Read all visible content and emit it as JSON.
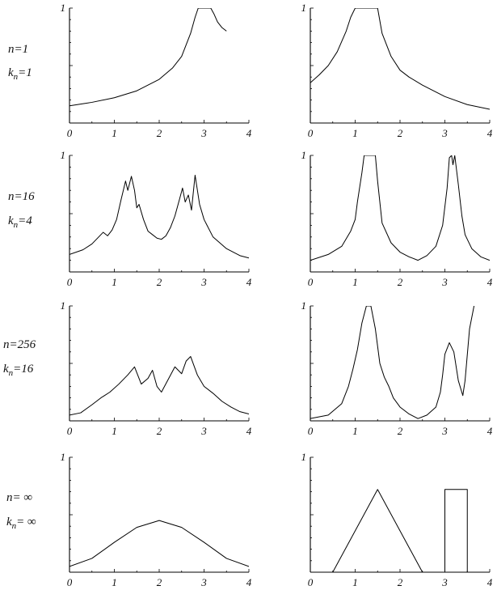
{
  "rows": [
    {
      "n_label": "n=1",
      "k_label": "kn=1"
    },
    {
      "n_label": "n=16",
      "k_label": "kn=4"
    },
    {
      "n_label": "n=256",
      "k_label": "kn=16"
    },
    {
      "n_label": "n= ∞",
      "k_label": "kn= ∞"
    }
  ],
  "chart_data": [
    {
      "type": "line",
      "row": 0,
      "column": "left",
      "xlim": [
        0,
        4
      ],
      "ylim": [
        0,
        1
      ],
      "x_ticks": [
        "0",
        "1",
        "2",
        "3",
        "4"
      ],
      "y_tick": "1",
      "series": [
        {
          "x": [
            0,
            0.5,
            1,
            1.5,
            2,
            2.3,
            2.5,
            2.7,
            2.8,
            2.87,
            3.15,
            3.22,
            3.3,
            3.4,
            3.5
          ],
          "y": [
            0.15,
            0.18,
            0.22,
            0.28,
            0.38,
            0.48,
            0.58,
            0.78,
            0.92,
            1.0,
            1.0,
            0.95,
            0.88,
            0.83,
            0.8
          ]
        }
      ]
    },
    {
      "type": "line",
      "row": 0,
      "column": "right",
      "xlim": [
        0,
        4
      ],
      "ylim": [
        0,
        1
      ],
      "x_ticks": [
        "0",
        "1",
        "2",
        "3",
        "4"
      ],
      "y_tick": "1",
      "series": [
        {
          "x": [
            0,
            0.2,
            0.4,
            0.6,
            0.8,
            0.9,
            1.0,
            1.5,
            1.6,
            1.8,
            2.0,
            2.2,
            2.5,
            3.0,
            3.5,
            4.0
          ],
          "y": [
            0.35,
            0.42,
            0.5,
            0.62,
            0.8,
            0.92,
            1.0,
            1.0,
            0.78,
            0.58,
            0.46,
            0.4,
            0.33,
            0.23,
            0.16,
            0.12
          ]
        }
      ]
    },
    {
      "type": "line",
      "row": 1,
      "column": "left",
      "xlim": [
        0,
        4
      ],
      "ylim": [
        0,
        1
      ],
      "x_ticks": [
        "0",
        "1",
        "2",
        "3",
        "4"
      ],
      "y_tick": "1",
      "series": [
        {
          "x": [
            0,
            0.3,
            0.5,
            0.65,
            0.75,
            0.85,
            0.95,
            1.05,
            1.15,
            1.25,
            1.3,
            1.38,
            1.45,
            1.5,
            1.55,
            1.65,
            1.75,
            1.85,
            1.95,
            2.05,
            2.15,
            2.25,
            2.35,
            2.45,
            2.52,
            2.58,
            2.65,
            2.72,
            2.8,
            2.9,
            3.0,
            3.2,
            3.5,
            3.8,
            4.0
          ],
          "y": [
            0.15,
            0.19,
            0.24,
            0.3,
            0.34,
            0.31,
            0.36,
            0.45,
            0.62,
            0.78,
            0.7,
            0.82,
            0.7,
            0.55,
            0.58,
            0.45,
            0.35,
            0.32,
            0.29,
            0.28,
            0.31,
            0.38,
            0.48,
            0.62,
            0.72,
            0.6,
            0.66,
            0.53,
            0.83,
            0.58,
            0.45,
            0.3,
            0.2,
            0.14,
            0.12
          ]
        }
      ]
    },
    {
      "type": "line",
      "row": 1,
      "column": "right",
      "xlim": [
        0,
        4
      ],
      "ylim": [
        0,
        1
      ],
      "x_ticks": [
        "0",
        "1",
        "2",
        "3",
        "4"
      ],
      "y_tick": "1",
      "series": [
        {
          "x": [
            0,
            0.4,
            0.7,
            0.9,
            1.0,
            1.05,
            1.15,
            1.2,
            1.45,
            1.5,
            1.6,
            1.8,
            2.0,
            2.2,
            2.4,
            2.6,
            2.8,
            2.95,
            3.05,
            3.1,
            3.15,
            3.18,
            3.22,
            3.3,
            3.38,
            3.45,
            3.6,
            3.8,
            4.0
          ],
          "y": [
            0.1,
            0.15,
            0.22,
            0.35,
            0.45,
            0.6,
            0.85,
            1.0,
            1.0,
            0.78,
            0.42,
            0.25,
            0.17,
            0.13,
            0.1,
            0.14,
            0.22,
            0.4,
            0.72,
            0.98,
            1.0,
            0.92,
            1.0,
            0.75,
            0.48,
            0.32,
            0.2,
            0.13,
            0.1
          ]
        }
      ]
    },
    {
      "type": "line",
      "row": 2,
      "column": "left",
      "xlim": [
        0,
        4
      ],
      "ylim": [
        0,
        1
      ],
      "x_ticks": [
        "0",
        "1",
        "2",
        "3",
        "4"
      ],
      "y_tick": "1",
      "series": [
        {
          "x": [
            0,
            0.25,
            0.5,
            0.7,
            0.9,
            1.1,
            1.3,
            1.45,
            1.6,
            1.75,
            1.85,
            1.95,
            2.05,
            2.2,
            2.35,
            2.5,
            2.6,
            2.7,
            2.85,
            3.0,
            3.2,
            3.4,
            3.6,
            3.8,
            4.0
          ],
          "y": [
            0.05,
            0.07,
            0.14,
            0.2,
            0.25,
            0.32,
            0.4,
            0.47,
            0.32,
            0.37,
            0.44,
            0.3,
            0.25,
            0.36,
            0.47,
            0.41,
            0.52,
            0.56,
            0.4,
            0.3,
            0.24,
            0.17,
            0.12,
            0.08,
            0.06
          ]
        }
      ]
    },
    {
      "type": "line",
      "row": 2,
      "column": "right",
      "xlim": [
        0,
        4
      ],
      "ylim": [
        0,
        1
      ],
      "x_ticks": [
        "0",
        "1",
        "2",
        "3",
        "4"
      ],
      "y_tick": "1",
      "series": [
        {
          "x": [
            0,
            0.4,
            0.7,
            0.85,
            0.95,
            1.05,
            1.15,
            1.25,
            1.35,
            1.45,
            1.55,
            1.65,
            1.75,
            1.85,
            2.0,
            2.2,
            2.4,
            2.6,
            2.8,
            2.9,
            2.95,
            3.0,
            3.1,
            3.2,
            3.3,
            3.4,
            3.45,
            3.55,
            3.65
          ],
          "y": [
            0.02,
            0.05,
            0.15,
            0.3,
            0.45,
            0.62,
            0.85,
            1.0,
            1.0,
            0.8,
            0.5,
            0.38,
            0.3,
            0.2,
            0.12,
            0.06,
            0.02,
            0.05,
            0.12,
            0.25,
            0.4,
            0.58,
            0.68,
            0.6,
            0.35,
            0.22,
            0.35,
            0.8,
            1.0
          ]
        }
      ]
    },
    {
      "type": "line",
      "row": 3,
      "column": "left",
      "xlim": [
        0,
        4
      ],
      "ylim": [
        0,
        1
      ],
      "x_ticks": [
        "0",
        "1",
        "2",
        "3",
        "4"
      ],
      "y_tick": "1",
      "series": [
        {
          "x": [
            0,
            0.5,
            1.0,
            1.5,
            2.0,
            2.5,
            3.0,
            3.5,
            4.0
          ],
          "y": [
            0.05,
            0.12,
            0.26,
            0.39,
            0.45,
            0.39,
            0.26,
            0.12,
            0.05
          ]
        }
      ]
    },
    {
      "type": "line",
      "row": 3,
      "column": "right",
      "xlim": [
        0,
        4
      ],
      "ylim": [
        0,
        1
      ],
      "x_ticks": [
        "0",
        "1",
        "2",
        "3",
        "4"
      ],
      "y_tick": "1",
      "series": [
        {
          "x": [
            0,
            0.5,
            1.5,
            2.5,
            3.0,
            3.0,
            3.5,
            3.5,
            4.0
          ],
          "y": [
            0,
            0,
            0.72,
            0,
            0,
            0.72,
            0.72,
            0,
            0
          ]
        }
      ]
    }
  ]
}
